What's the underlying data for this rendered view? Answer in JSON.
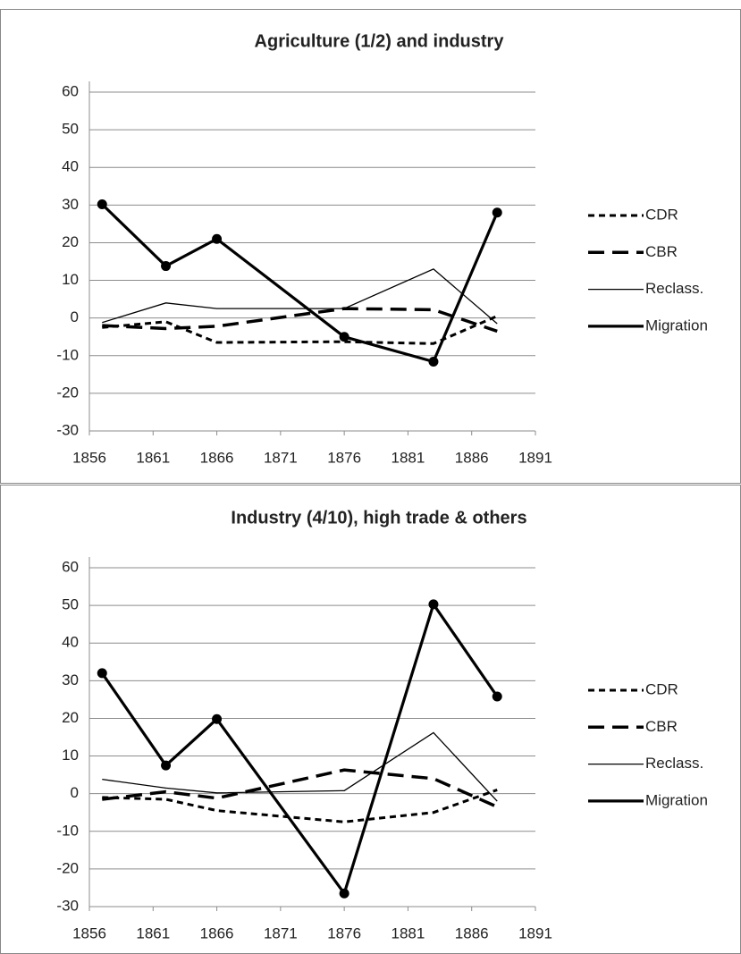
{
  "chart_data": [
    {
      "type": "line",
      "title": "Agriculture (1/2) and industry",
      "x": [
        1857,
        1862,
        1866,
        1876,
        1883,
        1888
      ],
      "series": [
        {
          "name": "CDR",
          "color": "#000000",
          "style": "short-dash",
          "values": [
            -2.5,
            -1,
            -6.5,
            -6.3,
            -6.8,
            0.5
          ]
        },
        {
          "name": "CBR",
          "color": "#000000",
          "style": "long-dash",
          "values": [
            -2,
            -2.8,
            -2.2,
            2.5,
            2.2,
            -3.5
          ]
        },
        {
          "name": "Reclass.",
          "color": "#000000",
          "style": "thin",
          "values": [
            -1.2,
            4,
            2.5,
            2.5,
            13,
            -1.5
          ]
        },
        {
          "name": "Migration",
          "color": "#000000",
          "style": "thick",
          "values": [
            30.2,
            13.8,
            21,
            -5,
            -11.6,
            28
          ]
        }
      ],
      "xlim": [
        1856,
        1891
      ],
      "xticks": [
        1856,
        1861,
        1866,
        1871,
        1876,
        1881,
        1886,
        1891
      ],
      "ylim": [
        -30,
        60
      ],
      "yticks": [
        -30,
        -20,
        -10,
        0,
        10,
        20,
        30,
        40,
        50,
        60
      ],
      "grid": true,
      "legend": "right"
    },
    {
      "type": "line",
      "title": "Industry (4/10), high trade & others",
      "x": [
        1857,
        1862,
        1866,
        1876,
        1883,
        1888
      ],
      "series": [
        {
          "name": "CDR",
          "color": "#000000",
          "style": "short-dash",
          "values": [
            -1,
            -1.5,
            -4.5,
            -7.5,
            -5,
            1
          ]
        },
        {
          "name": "CBR",
          "color": "#000000",
          "style": "long-dash",
          "values": [
            -1.5,
            0.5,
            -1.2,
            6.3,
            4,
            -3.5
          ]
        },
        {
          "name": "Reclass.",
          "color": "#000000",
          "style": "thin",
          "values": [
            3.8,
            1.5,
            0.2,
            0.8,
            16.2,
            -2
          ]
        },
        {
          "name": "Migration",
          "color": "#000000",
          "style": "thick",
          "values": [
            32,
            7.5,
            19.8,
            -26.5,
            50.3,
            25.8
          ]
        }
      ],
      "xlim": [
        1856,
        1891
      ],
      "xticks": [
        1856,
        1861,
        1866,
        1871,
        1876,
        1881,
        1886,
        1891
      ],
      "ylim": [
        -30,
        60
      ],
      "yticks": [
        -30,
        -20,
        -10,
        0,
        10,
        20,
        30,
        40,
        50,
        60
      ],
      "grid": true,
      "legend": "right"
    }
  ]
}
